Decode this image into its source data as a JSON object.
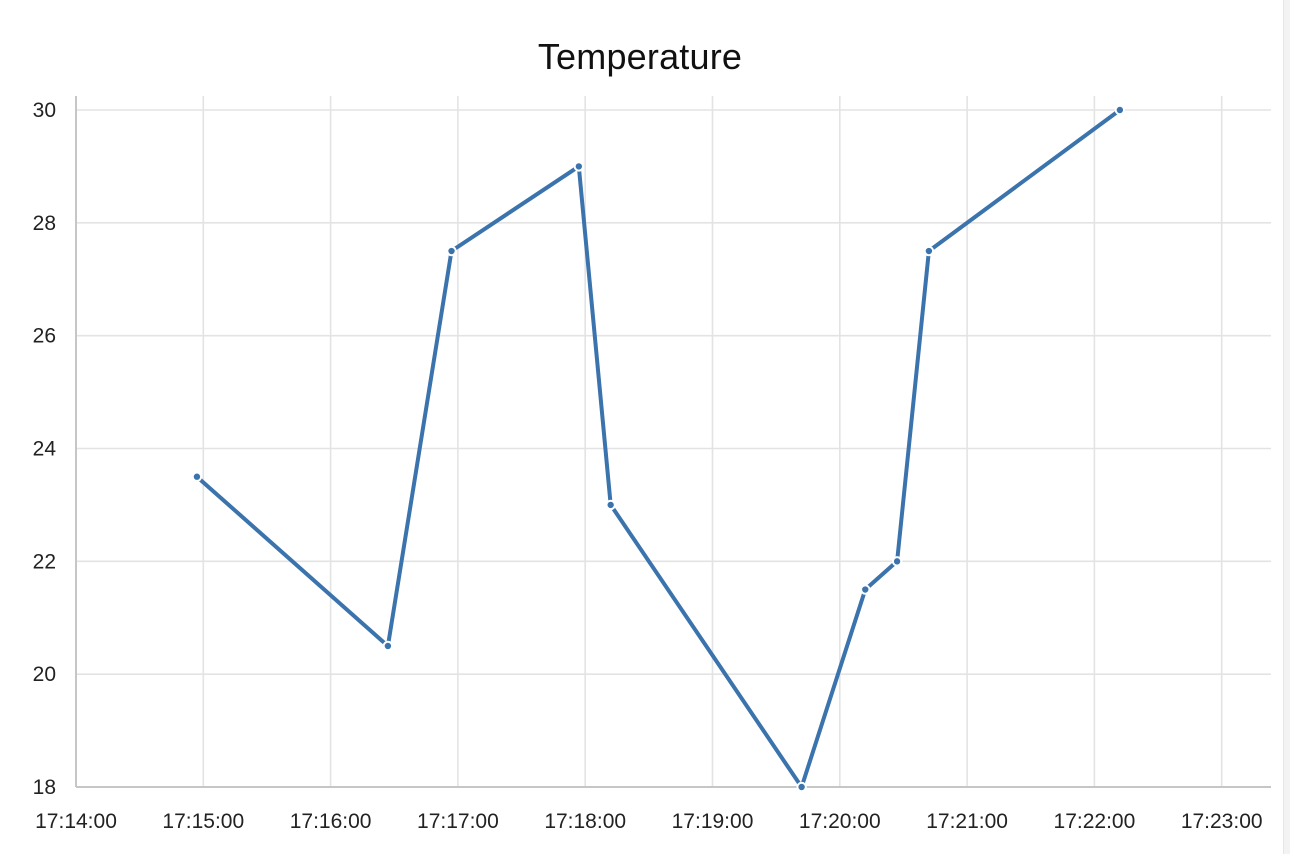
{
  "chart_data": {
    "type": "line",
    "title": "Temperature",
    "xlabel": "",
    "ylabel": "",
    "x_ticks": [
      "17:14:00",
      "17:15:00",
      "17:16:00",
      "17:17:00",
      "17:18:00",
      "17:19:00",
      "17:20:00",
      "17:21:00",
      "17:22:00",
      "17:23:00"
    ],
    "y_ticks": [
      18,
      20,
      22,
      24,
      26,
      28,
      30
    ],
    "xlim": [
      "17:14:00",
      "17:23:25"
    ],
    "ylim": [
      18,
      30
    ],
    "grid": true,
    "legend": "none",
    "series": [
      {
        "color": "#3b73ad",
        "points": [
          {
            "x": "17:14:57",
            "y": 23.5
          },
          {
            "x": "17:16:27",
            "y": 20.5
          },
          {
            "x": "17:16:57",
            "y": 27.5
          },
          {
            "x": "17:17:57",
            "y": 29.0
          },
          {
            "x": "17:18:12",
            "y": 23.0
          },
          {
            "x": "17:19:42",
            "y": 18.0
          },
          {
            "x": "17:20:12",
            "y": 21.5
          },
          {
            "x": "17:20:27",
            "y": 22.0
          },
          {
            "x": "17:20:42",
            "y": 27.5
          },
          {
            "x": "17:22:12",
            "y": 30.0
          }
        ]
      }
    ]
  }
}
